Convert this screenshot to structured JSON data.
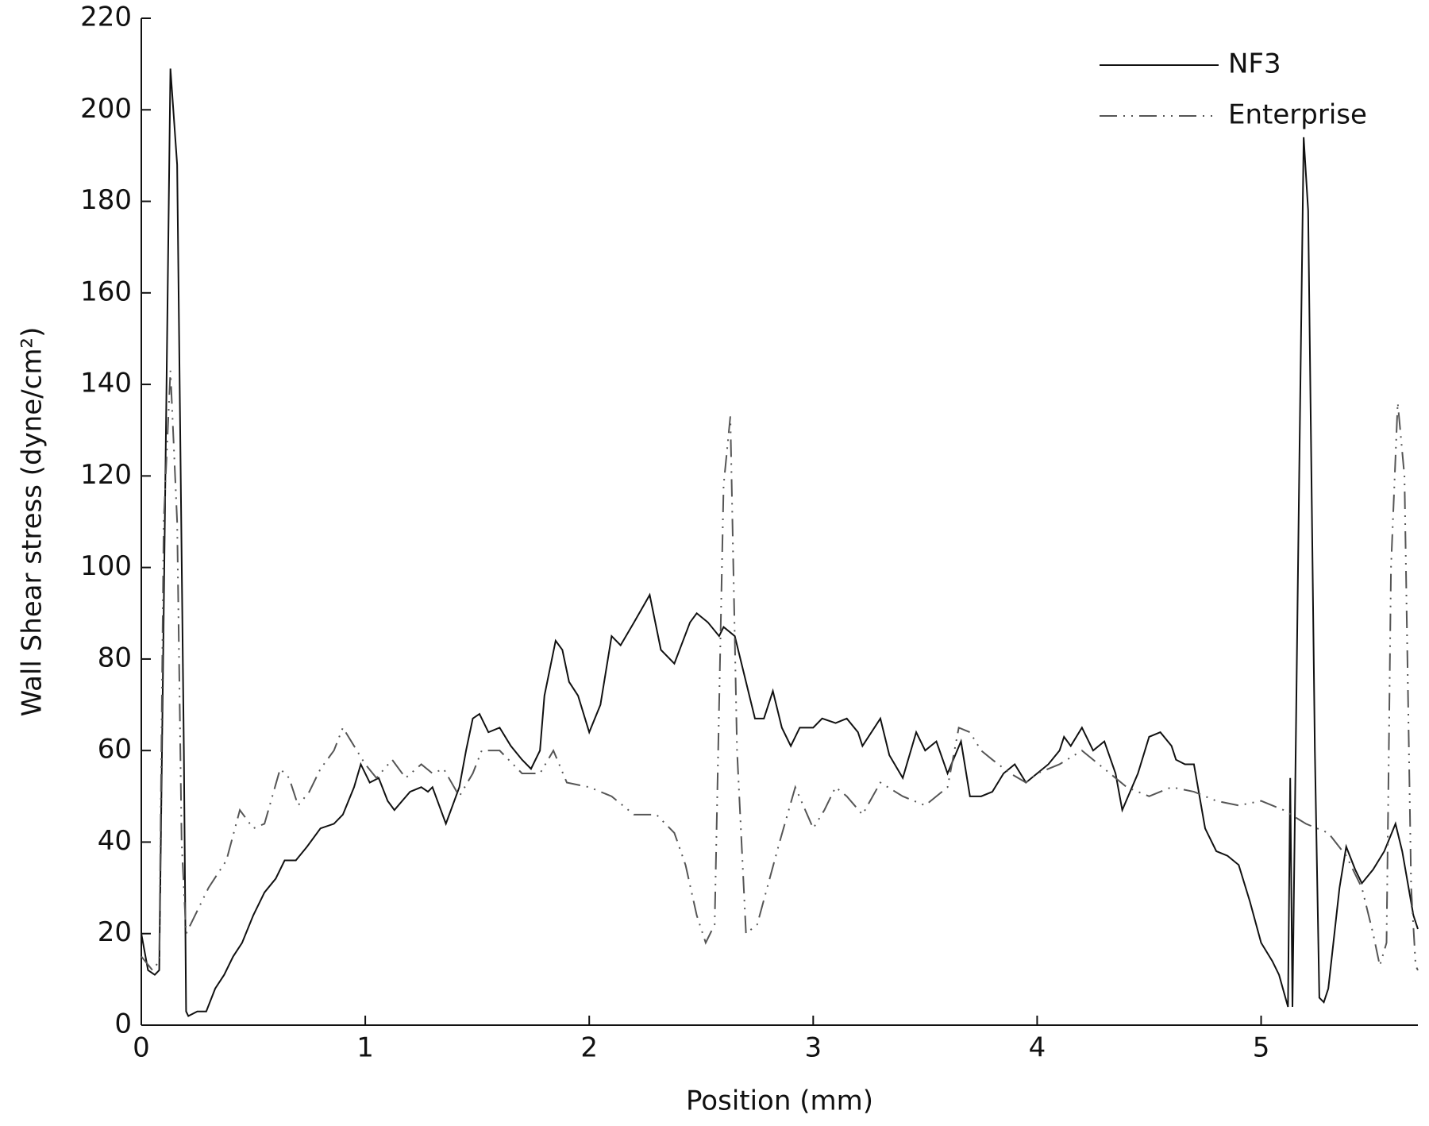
{
  "chart_data": {
    "type": "line",
    "xlabel": "Position (mm)",
    "ylabel": "Wall Shear stress (dyne/cm²)",
    "xlim": [
      0,
      5.7
    ],
    "ylim": [
      0,
      220
    ],
    "xticks": [
      0,
      1,
      2,
      3,
      4,
      5
    ],
    "yticks": [
      0,
      20,
      40,
      60,
      80,
      100,
      120,
      140,
      160,
      180,
      200,
      220
    ],
    "legend": "upper right",
    "series": [
      {
        "name": "NF3",
        "color": "#111111",
        "style": "solid",
        "x": [
          0,
          0.03,
          0.06,
          0.08,
          0.1,
          0.13,
          0.16,
          0.19,
          0.2,
          0.21,
          0.25,
          0.29,
          0.33,
          0.37,
          0.41,
          0.45,
          0.5,
          0.55,
          0.6,
          0.64,
          0.69,
          0.74,
          0.8,
          0.86,
          0.9,
          0.95,
          0.98,
          1.02,
          1.06,
          1.1,
          1.13,
          1.2,
          1.25,
          1.28,
          1.3,
          1.36,
          1.42,
          1.45,
          1.48,
          1.51,
          1.55,
          1.6,
          1.65,
          1.7,
          1.74,
          1.78,
          1.8,
          1.85,
          1.88,
          1.91,
          1.95,
          2.0,
          2.05,
          2.1,
          2.14,
          2.2,
          2.27,
          2.32,
          2.38,
          2.45,
          2.48,
          2.53,
          2.58,
          2.6,
          2.65,
          2.7,
          2.74,
          2.78,
          2.82,
          2.86,
          2.9,
          2.94,
          3.0,
          3.04,
          3.1,
          3.15,
          3.2,
          3.22,
          3.3,
          3.34,
          3.4,
          3.46,
          3.5,
          3.55,
          3.6,
          3.66,
          3.7,
          3.75,
          3.8,
          3.85,
          3.9,
          3.95,
          4.0,
          4.05,
          4.1,
          4.12,
          4.15,
          4.2,
          4.25,
          4.3,
          4.35,
          4.38,
          4.45,
          4.5,
          4.55,
          4.6,
          4.62,
          4.66,
          4.7,
          4.75,
          4.8,
          4.85,
          4.9,
          4.95,
          5.0,
          5.05,
          5.08,
          5.12,
          5.13,
          5.14,
          5.17,
          5.19,
          5.21,
          5.24,
          5.26,
          5.28,
          5.3,
          5.35,
          5.38,
          5.42,
          5.45,
          5.5,
          5.55,
          5.6,
          5.63,
          5.68,
          5.7
        ],
        "values": [
          20,
          12,
          11,
          12,
          90,
          209,
          188,
          60,
          3,
          2,
          3,
          3,
          8,
          11,
          15,
          18,
          24,
          29,
          32,
          36,
          36,
          39,
          43,
          44,
          46,
          52,
          57,
          53,
          54,
          49,
          47,
          51,
          52,
          51,
          52,
          44,
          52,
          60,
          67,
          68,
          64,
          65,
          61,
          58,
          56,
          60,
          72,
          84,
          82,
          75,
          72,
          64,
          70,
          85,
          83,
          88,
          94,
          82,
          79,
          88,
          90,
          88,
          85,
          87,
          85,
          75,
          67,
          67,
          73,
          65,
          61,
          65,
          65,
          67,
          66,
          67,
          64,
          61,
          67,
          59,
          54,
          64,
          60,
          62,
          55,
          62,
          50,
          50,
          51,
          55,
          57,
          53,
          55,
          57,
          60,
          63,
          61,
          65,
          60,
          62,
          55,
          47,
          55,
          63,
          64,
          61,
          58,
          57,
          57,
          43,
          38,
          37,
          35,
          27,
          18,
          14,
          11,
          4,
          54,
          4,
          120,
          194,
          178,
          60,
          6,
          5,
          8,
          30,
          39,
          34,
          31,
          34,
          38,
          44,
          38,
          24,
          21
        ]
      },
      {
        "name": "Enterprise",
        "color": "#555555",
        "style": "dashdot",
        "x": [
          0,
          0.05,
          0.08,
          0.1,
          0.13,
          0.16,
          0.18,
          0.2,
          0.25,
          0.3,
          0.38,
          0.44,
          0.5,
          0.55,
          0.62,
          0.66,
          0.7,
          0.75,
          0.8,
          0.86,
          0.9,
          0.95,
          1.0,
          1.05,
          1.12,
          1.18,
          1.25,
          1.3,
          1.35,
          1.42,
          1.48,
          1.52,
          1.6,
          1.7,
          1.78,
          1.84,
          1.9,
          2.0,
          2.1,
          2.2,
          2.3,
          2.38,
          2.43,
          2.48,
          2.52,
          2.56,
          2.6,
          2.63,
          2.66,
          2.7,
          2.75,
          2.85,
          2.92,
          3.0,
          3.05,
          3.1,
          3.15,
          3.22,
          3.3,
          3.4,
          3.5,
          3.6,
          3.65,
          3.7,
          3.75,
          3.8,
          3.88,
          3.95,
          4.0,
          4.1,
          4.2,
          4.3,
          4.4,
          4.5,
          4.6,
          4.7,
          4.8,
          4.9,
          5.0,
          5.1,
          5.2,
          5.3,
          5.38,
          5.45,
          5.5,
          5.53,
          5.56,
          5.58,
          5.61,
          5.64,
          5.67,
          5.69,
          5.7
        ],
        "values": [
          15,
          12,
          14,
          110,
          143,
          110,
          40,
          20,
          25,
          30,
          36,
          47,
          43,
          44,
          56,
          54,
          48,
          51,
          56,
          60,
          65,
          61,
          57,
          54,
          58,
          54,
          57,
          55,
          56,
          50,
          55,
          60,
          60,
          55,
          55,
          60,
          53,
          52,
          50,
          46,
          46,
          42,
          35,
          24,
          18,
          22,
          118,
          133,
          60,
          20,
          22,
          40,
          52,
          43,
          47,
          52,
          50,
          46,
          53,
          50,
          48,
          52,
          65,
          64,
          60,
          58,
          55,
          53,
          55,
          57,
          60,
          56,
          52,
          50,
          52,
          51,
          49,
          48,
          49,
          47,
          44,
          42,
          37,
          30,
          20,
          13,
          18,
          100,
          136,
          120,
          30,
          13,
          12
        ]
      }
    ]
  }
}
